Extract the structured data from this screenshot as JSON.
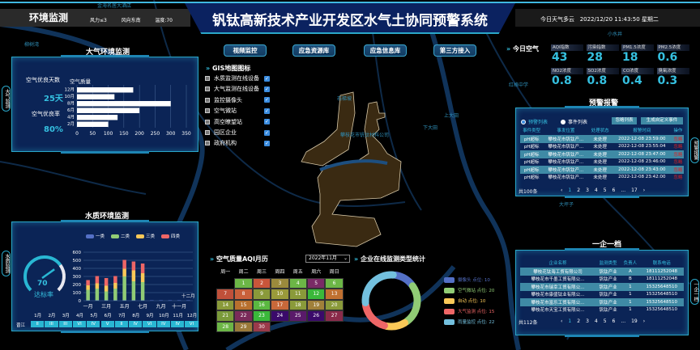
{
  "header": {
    "section_title": "环境监测",
    "wind_force": "风力≤3",
    "wind_direction": "风向东南",
    "temperature": "温度:70",
    "title": "钒钛高新技术产业开发区水气土协同预警系统",
    "weather": "今日天气多云",
    "datetime": "2022/12/20 11:43:50 星期二"
  },
  "side_tabs": {
    "air": "大气监测",
    "water": "水质监测",
    "alarm": "预警报警",
    "enterprise": "一企一档"
  },
  "air_panel": {
    "title": "大气环境监测",
    "good_days_label": "空气优良天数",
    "good_days_value": "25天",
    "good_rate_label": "空气优良率",
    "good_rate_value": "80%",
    "chart_data": {
      "type": "bar",
      "orientation": "horizontal",
      "title": "空气质量",
      "categories": [
        "12月",
        "10月",
        "8月",
        "6月",
        "4月",
        "2月"
      ],
      "values": [
        180,
        120,
        300,
        200,
        130,
        100
      ],
      "xlim": [
        0,
        350
      ],
      "xticks": [
        "0",
        "50",
        "100",
        "150",
        "200",
        "250",
        "300",
        "350"
      ],
      "grid": true,
      "color": "#ffffff"
    }
  },
  "water_panel": {
    "title": "水质环境监测",
    "gauge_value": "70",
    "gauge_fraction": 0.7,
    "gauge_label": "达标率",
    "chart_data": {
      "type": "bar",
      "stacked": true,
      "categories": [
        "一月",
        "二月",
        "三月",
        "四月",
        "五月",
        "六月",
        "七月",
        "八月",
        "九月",
        "十月",
        "十一月",
        "十二月"
      ],
      "xtick_labels": [
        "一月",
        "三月",
        "五月",
        "七月",
        "九月",
        "十一月"
      ],
      "ylim": [
        0,
        600
      ],
      "yticks": [
        "0",
        "100",
        "200",
        "300",
        "400",
        "500",
        "600"
      ],
      "legend_position": "top",
      "series": [
        {
          "name": "一类",
          "color": "#5470c6",
          "values": [
            5,
            5,
            5,
            5,
            5,
            5,
            5,
            5,
            5,
            5,
            5,
            5
          ]
        },
        {
          "name": "二类",
          "color": "#91cc75",
          "values": [
            130,
            145,
            110,
            145,
            295,
            235,
            225,
            0,
            0,
            0,
            0,
            0
          ]
        },
        {
          "name": "三类",
          "color": "#fac858",
          "values": [
            55,
            65,
            70,
            70,
            95,
            135,
            110,
            0,
            0,
            0,
            0,
            0
          ]
        },
        {
          "name": "四类",
          "color": "#ee6666",
          "values": [
            65,
            90,
            95,
            85,
            110,
            110,
            120,
            0,
            0,
            0,
            0,
            0
          ]
        }
      ]
    },
    "table": {
      "months": [
        "1月",
        "2月",
        "3月",
        "4月",
        "5月",
        "6月",
        "7月",
        "8月",
        "9月",
        "10月",
        "11月",
        "12月"
      ],
      "river": "晋江",
      "grades": [
        "II",
        "III",
        "III",
        "VI",
        "IV",
        "V",
        "II",
        "IV",
        "VI",
        "IV",
        "IV",
        "VI"
      ]
    }
  },
  "top_buttons": [
    "视频监控",
    "应急资源库",
    "应急信息库",
    "第三方接入"
  ],
  "gis": {
    "title": "GIS地图图标",
    "items": [
      "水质监测在线设备",
      "大气监测在线设备",
      "监控摄像头",
      "空气微站",
      "高空瞭望站",
      "园区企业",
      "政府机构"
    ],
    "checked": [
      true,
      true,
      true,
      true,
      true,
      true,
      true
    ]
  },
  "map_labels": [
    "攀枝花市钒钛材料公司",
    "石梯坡",
    "下大田",
    "上大田",
    "大坪子",
    "红格中学",
    "金海名居大酒店",
    "小水井",
    "柳树湾"
  ],
  "calendar": {
    "title": "空气质量AQI月历",
    "selected_month": "2022年11月",
    "weekdays": [
      "周一",
      "周二",
      "周三",
      "周四",
      "周五",
      "周六",
      "周日"
    ],
    "first_weekday_index": 1,
    "days": [
      {
        "d": "1",
        "c": "#6cb646"
      },
      {
        "d": "2",
        "c": "#c9553a"
      },
      {
        "d": "3",
        "c": "#9b8a3c"
      },
      {
        "d": "4",
        "c": "#6cb646"
      },
      {
        "d": "5",
        "c": "#7a2a66"
      },
      {
        "d": "6",
        "c": "#6cb646"
      },
      {
        "d": "7",
        "c": "#c0503a"
      },
      {
        "d": "8",
        "c": "#c9603a"
      },
      {
        "d": "9",
        "c": "#8a9a3a"
      },
      {
        "d": "10",
        "c": "#9a9a3a"
      },
      {
        "d": "11",
        "c": "#8a9a3a"
      },
      {
        "d": "12",
        "c": "#3ab83a"
      },
      {
        "d": "13",
        "c": "#c07030"
      },
      {
        "d": "14",
        "c": "#8a9a3a"
      },
      {
        "d": "15",
        "c": "#b8702e"
      },
      {
        "d": "16",
        "c": "#5ab840"
      },
      {
        "d": "17",
        "c": "#c8683a"
      },
      {
        "d": "18",
        "c": "#8a9a3a"
      },
      {
        "d": "19",
        "c": "#a0803a"
      },
      {
        "d": "20",
        "c": "#8a9a3a"
      },
      {
        "d": "21",
        "c": "#7a9a3a"
      },
      {
        "d": "22",
        "c": "#7a2a5a"
      },
      {
        "d": "23",
        "c": "#3ab83a"
      },
      {
        "d": "24",
        "c": "#3a0a6a"
      },
      {
        "d": "25",
        "c": "#5a1a6a"
      },
      {
        "d": "26",
        "c": "#3a0a6a"
      },
      {
        "d": "27",
        "c": "#8a2a4a"
      },
      {
        "d": "28",
        "c": "#6cb646"
      },
      {
        "d": "29",
        "c": "#9a7a3a"
      },
      {
        "d": "30",
        "c": "#9a3a4a"
      }
    ]
  },
  "donut": {
    "title": "企业在线监测类型统计",
    "chart_data": {
      "type": "pie",
      "donut": true,
      "legend_position": "right",
      "slices": [
        {
          "name": "摄像头",
          "label": "摄像头 点位: 10",
          "value": 10,
          "color": "#5470c6"
        },
        {
          "name": "空气微站",
          "label": "空气微站 点位: 20",
          "value": 20,
          "color": "#91cc75"
        },
        {
          "name": "自动",
          "label": "自动 点位: 10",
          "value": 10,
          "color": "#fac858"
        },
        {
          "name": "大气监测",
          "label": "大气监测 点位: 15",
          "value": 15,
          "color": "#ee6666"
        },
        {
          "name": "雨量监控",
          "label": "雨量监控 点位: 22",
          "value": 22,
          "color": "#73c0de"
        }
      ]
    }
  },
  "air_today": {
    "title": "今日空气",
    "items": [
      {
        "label": "AQI指数",
        "value": "43"
      },
      {
        "label": "污染指数",
        "value": "28"
      },
      {
        "label": "PM1.5浓度",
        "value": "18"
      },
      {
        "label": "PM2.5浓度",
        "value": "0.6"
      },
      {
        "label": "NO2浓度",
        "value": "0.8"
      },
      {
        "label": "SO2浓度",
        "value": "0.8"
      },
      {
        "label": "CO浓度",
        "value": "0.4"
      },
      {
        "label": "臭氧浓度",
        "value": "0.3"
      }
    ]
  },
  "alarm": {
    "title": "预警报警",
    "radio_warning": "预警列表",
    "radio_event": "事件列表",
    "ignore_list": "忽略列表",
    "create_event": "生成自定义事件",
    "columns": [
      "事件类型",
      "事发位置",
      "处理状态",
      "报警时间",
      "操作"
    ],
    "rows": [
      [
        "pH超标",
        "攀枝花市钒钛产...",
        "未处理",
        "2022-12-08 23:59:00",
        "忽略"
      ],
      [
        "pH超标",
        "攀枝花市钒钛产...",
        "未处理",
        "2022-12-08 23:55:04",
        "忽略"
      ],
      [
        "pH超标",
        "攀枝花市钒钛产...",
        "未处理",
        "2022-12-08 23:47:00",
        "忽略"
      ],
      [
        "pH超标",
        "攀枝花市钒钛产...",
        "未处理",
        "2022-12-08 23:46:00",
        "忽略"
      ],
      [
        "pH超标",
        "攀枝花市钒钛产...",
        "未处理",
        "2022-12-08 23:43:00",
        "忽略"
      ],
      [
        "pH超标",
        "攀枝花市钒钛产...",
        "未处理",
        "2022-12-08 23:42:00",
        "忽略"
      ]
    ],
    "total": "共100条",
    "pages": [
      "‹",
      "1",
      "2",
      "3",
      "4",
      "5",
      "6",
      "...",
      "17",
      "›"
    ],
    "current_page": "1"
  },
  "enterprise": {
    "title": "一企一档",
    "columns": [
      "企业名称",
      "监测类型",
      "负责人",
      "联系电话"
    ],
    "rows": [
      [
        "攀枝花钛海工贸有限公司",
        "钒钛产业",
        "A",
        "18111252048"
      ],
      [
        "攀枝花市千墨工贸有限公...",
        "钒钛产业",
        "B",
        "18111252048"
      ],
      [
        "攀枝花市瑞幸工贸有限公...",
        "钒钛产业",
        "1",
        "15325648510"
      ],
      [
        "攀枝花市康盛钛业有限公...",
        "钒钛产业",
        "1",
        "15325648510"
      ],
      [
        "攀枝花市富乐工贸有限公...",
        "钒钛产业",
        "1",
        "15325648510"
      ],
      [
        "攀枝花市天宝工贸有限公...",
        "钒钛产业",
        "1",
        "15325648510"
      ]
    ],
    "total": "共112条",
    "pages": [
      "‹",
      "1",
      "2",
      "3",
      "4",
      "5",
      "6",
      "...",
      "19",
      "›"
    ],
    "current_page": "1"
  }
}
